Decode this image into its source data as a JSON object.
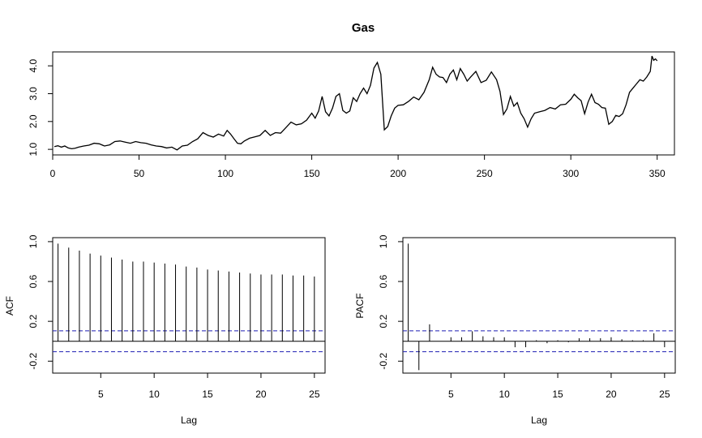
{
  "chart_data": [
    {
      "type": "line",
      "title": "Gas",
      "xlabel": "",
      "ylabel": "",
      "xlim": [
        0,
        360
      ],
      "ylim": [
        0.8,
        4.5
      ],
      "xticks": [
        0,
        50,
        100,
        150,
        200,
        250,
        300,
        350
      ],
      "yticks": [
        "1.0",
        "2.0",
        "3.0",
        "4.0"
      ],
      "grid": false,
      "series": [
        {
          "x": [
            1,
            3,
            5,
            7,
            9,
            11,
            13,
            15,
            18,
            21,
            24,
            27,
            30,
            33,
            36,
            39,
            42,
            45,
            48,
            51,
            54,
            57,
            60,
            63,
            66,
            69,
            72,
            75,
            78,
            81,
            84,
            87,
            90,
            93,
            96,
            99,
            101,
            103,
            105,
            107,
            109,
            111,
            114,
            117,
            120,
            123,
            126,
            129,
            132,
            135,
            138,
            141,
            144,
            147,
            150,
            152,
            154,
            156,
            158,
            160,
            162,
            164,
            166,
            168,
            170,
            172,
            174,
            176,
            178,
            180,
            182,
            184,
            186,
            188,
            190,
            192,
            194,
            196,
            198,
            200,
            203,
            206,
            209,
            212,
            215,
            218,
            220,
            222,
            224,
            226,
            228,
            230,
            232,
            234,
            236,
            238,
            240,
            242,
            245,
            248,
            251,
            254,
            257,
            259,
            261,
            263,
            265,
            267,
            269,
            271,
            273,
            275,
            277,
            279,
            282,
            285,
            288,
            291,
            294,
            297,
            300,
            302,
            304,
            306,
            308,
            310,
            312,
            314,
            316,
            318,
            320,
            322,
            324,
            326,
            328,
            330,
            332,
            334,
            336,
            338,
            340,
            342,
            344,
            346,
            347,
            348,
            349,
            350
          ],
          "y": [
            1.1,
            1.13,
            1.08,
            1.12,
            1.05,
            1.02,
            1.04,
            1.08,
            1.12,
            1.15,
            1.22,
            1.2,
            1.12,
            1.16,
            1.28,
            1.3,
            1.26,
            1.22,
            1.28,
            1.24,
            1.22,
            1.16,
            1.12,
            1.1,
            1.05,
            1.08,
            0.98,
            1.12,
            1.15,
            1.28,
            1.38,
            1.6,
            1.5,
            1.44,
            1.55,
            1.48,
            1.68,
            1.55,
            1.38,
            1.22,
            1.2,
            1.3,
            1.4,
            1.45,
            1.5,
            1.68,
            1.5,
            1.6,
            1.58,
            1.78,
            1.98,
            1.88,
            1.92,
            2.05,
            2.3,
            2.12,
            2.38,
            2.9,
            2.35,
            2.2,
            2.48,
            2.9,
            3.0,
            2.4,
            2.3,
            2.38,
            2.85,
            2.72,
            3.0,
            3.2,
            3.0,
            3.3,
            3.92,
            4.12,
            3.7,
            1.7,
            1.82,
            2.2,
            2.48,
            2.58,
            2.6,
            2.72,
            2.88,
            2.78,
            3.05,
            3.5,
            3.95,
            3.7,
            3.6,
            3.58,
            3.4,
            3.7,
            3.85,
            3.5,
            3.9,
            3.7,
            3.45,
            3.6,
            3.8,
            3.4,
            3.48,
            3.78,
            3.5,
            3.08,
            2.25,
            2.45,
            2.9,
            2.55,
            2.68,
            2.3,
            2.1,
            1.8,
            2.1,
            2.3,
            2.35,
            2.4,
            2.5,
            2.45,
            2.6,
            2.62,
            2.8,
            2.98,
            2.85,
            2.75,
            2.28,
            2.7,
            2.98,
            2.68,
            2.62,
            2.5,
            2.48,
            1.9,
            2.0,
            2.22,
            2.18,
            2.28,
            2.6,
            3.05,
            3.2,
            3.35,
            3.5,
            3.45,
            3.6,
            3.8,
            4.35,
            4.2,
            4.25,
            4.18
          ]
        }
      ]
    },
    {
      "type": "bar",
      "title": "",
      "xlabel": "Lag",
      "ylabel": "ACF",
      "xlim": [
        0.5,
        26
      ],
      "ylim": [
        -0.32,
        1.04
      ],
      "xticks": [
        5,
        10,
        15,
        20,
        25
      ],
      "yticks": [
        "-0.2",
        "0.2",
        "0.6",
        "1.0"
      ],
      "ci": 0.105,
      "categories": [
        1,
        2,
        3,
        4,
        5,
        6,
        7,
        8,
        9,
        10,
        11,
        12,
        13,
        14,
        15,
        16,
        17,
        18,
        19,
        20,
        21,
        22,
        23,
        24,
        25
      ],
      "values": [
        0.98,
        0.94,
        0.91,
        0.88,
        0.86,
        0.84,
        0.82,
        0.8,
        0.8,
        0.79,
        0.78,
        0.77,
        0.75,
        0.74,
        0.72,
        0.71,
        0.7,
        0.69,
        0.68,
        0.67,
        0.67,
        0.67,
        0.66,
        0.66,
        0.65
      ]
    },
    {
      "type": "bar",
      "title": "",
      "xlabel": "Lag",
      "ylabel": "PACF",
      "xlim": [
        0.5,
        26
      ],
      "ylim": [
        -0.32,
        1.04
      ],
      "xticks": [
        5,
        10,
        15,
        20,
        25
      ],
      "yticks": [
        "-0.2",
        "0.2",
        "0.6",
        "1.0"
      ],
      "ci": 0.105,
      "categories": [
        1,
        2,
        3,
        4,
        5,
        6,
        7,
        8,
        9,
        10,
        11,
        12,
        13,
        14,
        15,
        16,
        17,
        18,
        19,
        20,
        21,
        22,
        23,
        24,
        25
      ],
      "values": [
        0.98,
        -0.29,
        0.17,
        0.0,
        0.04,
        0.04,
        0.1,
        0.05,
        0.04,
        0.04,
        -0.06,
        -0.06,
        0.01,
        -0.02,
        0.01,
        -0.01,
        0.03,
        0.03,
        0.03,
        0.04,
        0.02,
        0.01,
        0.01,
        0.08,
        -0.06
      ]
    }
  ],
  "colors": {
    "line": "#000000",
    "ci": "#1f1fb4",
    "frame": "#000000"
  }
}
